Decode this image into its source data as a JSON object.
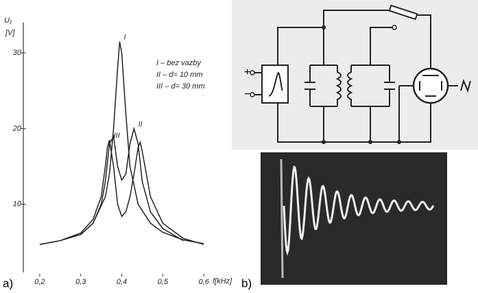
{
  "chart_data": {
    "type": "line",
    "y_label_top": "U₁",
    "y_label_unit": "[V]",
    "x_label": "f[kHz]",
    "panel_label": "a)",
    "xlim": [
      0.16,
      0.65
    ],
    "ylim": [
      1,
      34
    ],
    "xticks": [
      {
        "value": 0.2,
        "label": "0,2"
      },
      {
        "value": 0.3,
        "label": "0,3"
      },
      {
        "value": 0.4,
        "label": "0,4"
      },
      {
        "value": 0.5,
        "label": "0,5"
      },
      {
        "value": 0.6,
        "label": "0,6"
      }
    ],
    "yticks": [
      10,
      20,
      30
    ],
    "legend": [
      "I – bez vazby",
      "II – d= 10 mm",
      "III – d= 30 mm"
    ],
    "series": [
      {
        "name": "I",
        "color": "#222222",
        "x": [
          0.3,
          0.33,
          0.36,
          0.37,
          0.38,
          0.39,
          0.395,
          0.4,
          0.41,
          0.42,
          0.44,
          0.47,
          0.5,
          0.55,
          0.6
        ],
        "values": [
          6,
          7.5,
          11,
          14,
          20,
          28,
          31.5,
          30,
          22,
          15,
          10,
          7.5,
          6.3,
          5.3,
          4.8
        ]
      },
      {
        "name": "II",
        "color": "#222222",
        "x": [
          0.2,
          0.25,
          0.3,
          0.33,
          0.35,
          0.36,
          0.37,
          0.38,
          0.39,
          0.4,
          0.41,
          0.42,
          0.43,
          0.44,
          0.45,
          0.47,
          0.5,
          0.55
        ],
        "values": [
          4.7,
          5.2,
          6,
          7.5,
          10,
          13,
          18,
          19,
          15,
          13.2,
          14,
          18,
          20,
          18,
          13,
          9,
          6.8,
          5.2
        ]
      },
      {
        "name": "III",
        "color": "#222222",
        "x": [
          0.2,
          0.25,
          0.3,
          0.33,
          0.35,
          0.36,
          0.365,
          0.37,
          0.38,
          0.39,
          0.4,
          0.41,
          0.42,
          0.43,
          0.44,
          0.445,
          0.45,
          0.47,
          0.5,
          0.55,
          0.6
        ],
        "values": [
          4.7,
          5.2,
          6.2,
          8,
          11,
          15,
          17.5,
          18.5,
          15,
          10,
          8.4,
          9,
          11,
          14,
          17.5,
          18.2,
          17,
          11,
          7.5,
          5.5,
          4.7
        ]
      }
    ]
  },
  "diagram": {
    "panel_label": "b)",
    "plus": "+",
    "minus": "−"
  }
}
